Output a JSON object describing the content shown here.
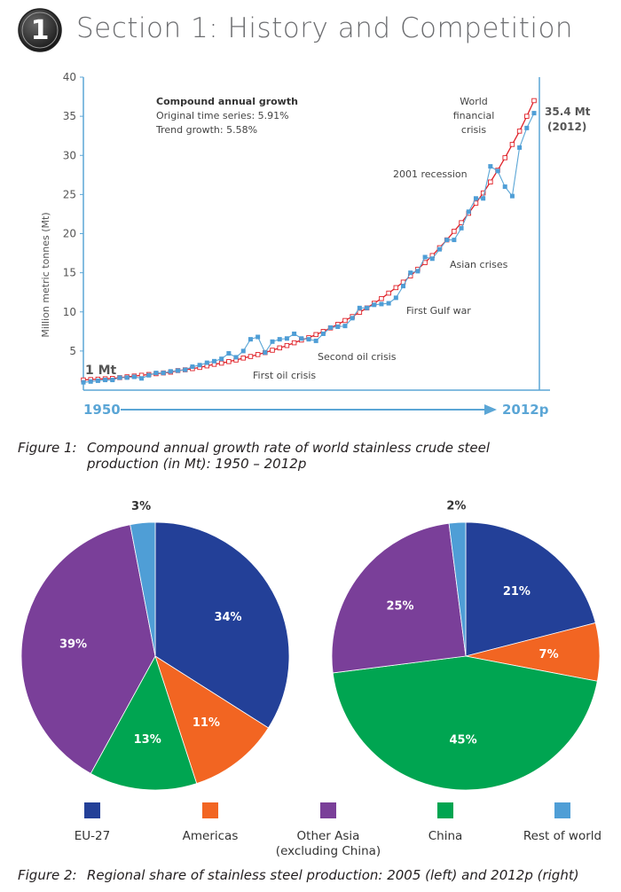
{
  "header": {
    "badge_number": "1",
    "title": "Section 1: History and Competition"
  },
  "colors": {
    "accent_blue": "#5ba6d6",
    "trend_red": "#e02128",
    "eu27": "#234098",
    "americas": "#f26522",
    "other_asia": "#7a3f99",
    "china": "#00a551",
    "rest_of_world": "#4f9ed6"
  },
  "chart_data": [
    {
      "type": "line",
      "ylabel": "Million metric tonnes (Mt)",
      "ylim": [
        0,
        40
      ],
      "yticks": [
        5,
        10,
        15,
        20,
        25,
        30,
        35,
        40
      ],
      "x_start_label": "1950",
      "x_end_label": "2012p",
      "start_label": "1 Mt",
      "end_label": [
        "35.4 Mt",
        "(2012)"
      ],
      "info_box": [
        "Compound annual growth",
        "Original time series: 5.91%",
        "Trend growth: 5.58%"
      ],
      "annotations": [
        "World",
        "financial",
        "crisis",
        "2001 recession",
        "Asian crises",
        "First Gulf war",
        "Second oil crisis",
        "First oil crisis"
      ],
      "x": [
        1950,
        1951,
        1952,
        1953,
        1954,
        1955,
        1956,
        1957,
        1958,
        1959,
        1960,
        1961,
        1962,
        1963,
        1964,
        1965,
        1966,
        1967,
        1968,
        1969,
        1970,
        1971,
        1972,
        1973,
        1974,
        1975,
        1976,
        1977,
        1978,
        1979,
        1980,
        1981,
        1982,
        1983,
        1984,
        1985,
        1986,
        1987,
        1988,
        1989,
        1990,
        1991,
        1992,
        1993,
        1994,
        1995,
        1996,
        1997,
        1998,
        1999,
        2000,
        2001,
        2002,
        2003,
        2004,
        2005,
        2006,
        2007,
        2008,
        2009,
        2010,
        2011,
        2012
      ],
      "series": [
        {
          "values": [
            1.0,
            1.1,
            1.2,
            1.3,
            1.3,
            1.6,
            1.6,
            1.7,
            1.5,
            1.9,
            2.2,
            2.2,
            2.4,
            2.5,
            2.6,
            3.0,
            3.2,
            3.5,
            3.7,
            4.0,
            4.7,
            4.2,
            5.0,
            6.5,
            6.8,
            4.8,
            6.2,
            6.5,
            6.6,
            7.2,
            6.6,
            6.5,
            6.3,
            7.2,
            8.0,
            8.1,
            8.2,
            9.2,
            10.5,
            10.5,
            10.9,
            11.0,
            11.1,
            11.8,
            13.3,
            15.0,
            15.2,
            17.0,
            16.8,
            18.0,
            19.2,
            19.2,
            20.7,
            22.8,
            24.5,
            24.5,
            28.6,
            28.0,
            26.0,
            24.8,
            31.0,
            33.5,
            35.4
          ]
        },
        {
          "values": [
            1.3,
            1.35,
            1.4,
            1.45,
            1.5,
            1.6,
            1.7,
            1.8,
            1.9,
            2.0,
            2.1,
            2.2,
            2.3,
            2.5,
            2.6,
            2.75,
            2.9,
            3.1,
            3.3,
            3.45,
            3.65,
            3.85,
            4.1,
            4.3,
            4.55,
            4.8,
            5.1,
            5.4,
            5.7,
            6.05,
            6.4,
            6.7,
            7.1,
            7.5,
            7.95,
            8.4,
            8.9,
            9.4,
            9.95,
            10.5,
            11.1,
            11.7,
            12.4,
            13.1,
            13.8,
            14.6,
            15.45,
            16.3,
            17.2,
            18.2,
            19.2,
            20.3,
            21.4,
            22.6,
            23.9,
            25.2,
            26.6,
            28.1,
            29.7,
            31.4,
            33.1,
            35.0,
            37.0
          ]
        }
      ]
    },
    {
      "type": "pie",
      "slices": [
        {
          "label": "EU-27",
          "value": 34,
          "text": "34%"
        },
        {
          "label": "Americas",
          "value": 11,
          "text": "11%"
        },
        {
          "label": "China",
          "value": 13,
          "text": "13%"
        },
        {
          "label": "Other Asia (excluding China)",
          "value": 39,
          "text": "39%"
        },
        {
          "label": "Rest of world",
          "value": 3,
          "text": "3%"
        }
      ]
    },
    {
      "type": "pie",
      "slices": [
        {
          "label": "EU-27",
          "value": 21,
          "text": "21%"
        },
        {
          "label": "Americas",
          "value": 7,
          "text": "7%"
        },
        {
          "label": "China",
          "value": 45,
          "text": "45%"
        },
        {
          "label": "Other Asia (excluding China)",
          "value": 25,
          "text": "25%"
        },
        {
          "label": "Rest of world",
          "value": 2,
          "text": "2%"
        }
      ]
    }
  ],
  "legend": [
    {
      "label": "EU-27",
      "color": "#234098"
    },
    {
      "label": "Americas",
      "color": "#f26522"
    },
    {
      "label": "Other Asia",
      "label2": "(excluding China)",
      "color": "#7a3f99"
    },
    {
      "label": "China",
      "color": "#00a551"
    },
    {
      "label": "Rest of world",
      "color": "#4f9ed6"
    }
  ],
  "figure1": {
    "label": "Figure 1:",
    "caption_line1": "Compound annual growth rate of world stainless crude steel",
    "caption_line2": "production (in Mt): 1950 – 2012p"
  },
  "figure2": {
    "label": "Figure 2:",
    "caption": "Regional share of stainless steel production: 2005 (left) and 2012p (right)"
  }
}
